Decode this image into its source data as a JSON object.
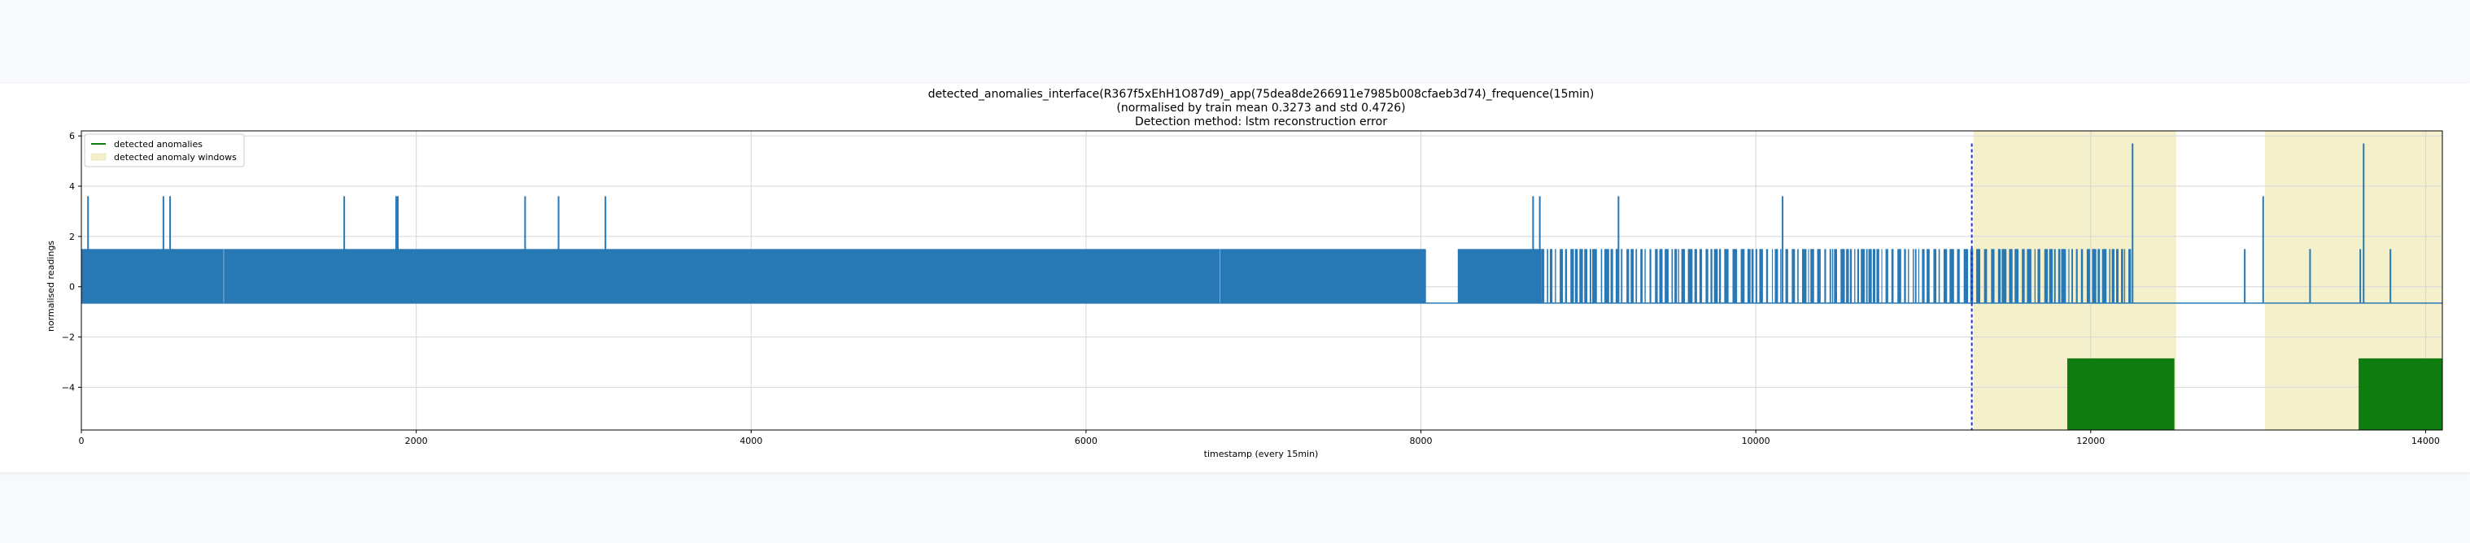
{
  "chart_data": {
    "type": "line",
    "title": "detected_anomalies_interface(R367f5xEhH1O87d9)_app(75dea8de266911e7985b008cfaeb3d74)_frequence(15min)",
    "subtitle": "(normalised by train mean 0.3273 and std 0.4726)",
    "method": "Detection method: lstm reconstruction error",
    "xlabel": "timestamp (every 15min)",
    "ylabel": "normalised readings",
    "xlim": [
      0,
      14100
    ],
    "ylim": [
      -5.7,
      6.2
    ],
    "xticks": [
      0,
      2000,
      4000,
      6000,
      8000,
      10000,
      12000,
      14000
    ],
    "yticks": [
      -4,
      -2,
      0,
      2,
      4,
      6
    ],
    "grid": true,
    "legend": {
      "position": "top-left",
      "entries": [
        "detected anomalies",
        "detected anomaly windows"
      ]
    },
    "colors": {
      "signal": "#2878b5",
      "anomalies": "#0f7d0f",
      "windows": "#f5f0cc",
      "split_line": "#2b2bd6"
    },
    "series": [
      {
        "style": "dense",
        "segments": [
          {
            "x0": 0,
            "x1": 8030,
            "low": -0.65,
            "high": 1.5
          },
          {
            "x0": 8220,
            "x1": 8720,
            "low": -0.65,
            "high": 1.5
          },
          {
            "x0": 8720,
            "x1": 12250,
            "low": -0.65,
            "high": 1.5,
            "gappy": true
          }
        ],
        "baseline": -0.65,
        "spikes": [
          [
            40,
            3.6
          ],
          [
            490,
            3.6
          ],
          [
            530,
            3.6
          ],
          [
            1570,
            3.6
          ],
          [
            1880,
            3.6
          ],
          [
            1890,
            3.6
          ],
          [
            2650,
            3.6
          ],
          [
            2850,
            3.6
          ],
          [
            3130,
            3.6
          ],
          [
            8670,
            3.6
          ],
          [
            8710,
            3.6
          ],
          [
            9180,
            3.6
          ],
          [
            10160,
            3.6
          ],
          [
            12250,
            5.7
          ],
          [
            12920,
            1.5
          ],
          [
            13030,
            3.6
          ],
          [
            13310,
            1.5
          ],
          [
            13610,
            1.5
          ],
          [
            13630,
            5.7
          ],
          [
            13790,
            1.5
          ]
        ]
      }
    ],
    "anomaly_windows": [
      [
        11300,
        12510
      ],
      [
        13040,
        14100
      ]
    ],
    "detected_anomalies": [
      {
        "x0": 11860,
        "x1": 12500,
        "y": -2.85
      },
      {
        "x0": 13600,
        "x1": 14100,
        "y": -2.85
      }
    ],
    "split_x": 11290
  }
}
